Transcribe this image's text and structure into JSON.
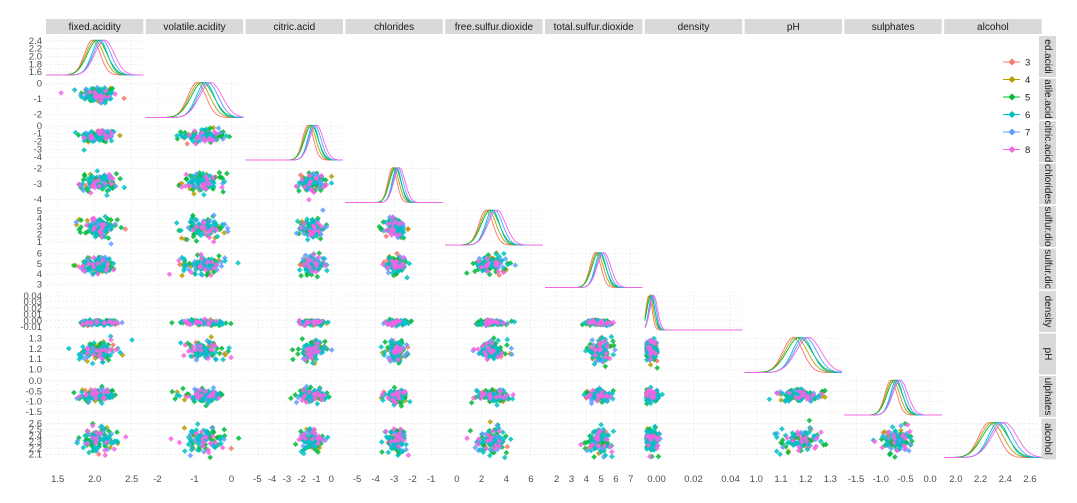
{
  "chart_data": {
    "type": "scatter",
    "layout": "pair-matrix-lower-triangle",
    "diagonal": "density",
    "variables": [
      "fixed.acidity",
      "volatile.acidity",
      "citric.acid",
      "chlorides",
      "free.sulfur.dioxide",
      "total.sulfur.dioxide",
      "density",
      "pH",
      "sulphates",
      "alcohol"
    ],
    "row_strip_labels": [
      "ed.acidi",
      "atile.acid",
      "citric.acid",
      "chlorides",
      "sulfur.dio",
      "sulfur.dic",
      "density",
      "pH",
      "ulphates",
      "alcohol"
    ],
    "column_ticks": [
      [
        "1.5",
        "2.0",
        "2.5"
      ],
      [
        "-2",
        "-1",
        "0"
      ],
      [
        "-5",
        "-4",
        "-3",
        "-2",
        "-1",
        "0"
      ],
      [
        "-5",
        "-4",
        "-3",
        "-2",
        "-1"
      ],
      [
        "0",
        "2",
        "4",
        "6"
      ],
      [
        "2",
        "3",
        "4",
        "5",
        "6",
        "7"
      ],
      [
        "0.00",
        "0.02",
        "0.04"
      ],
      [
        "1.0",
        "1.1",
        "1.2",
        "1.3"
      ],
      [
        "-1.5",
        "-1.0",
        "-0.5",
        "0.0"
      ],
      [
        "2.0",
        "2.2",
        "2.4",
        "2.6"
      ]
    ],
    "row_ticks": [
      [
        "1.6",
        "1.8",
        "2.0",
        "2.2",
        "2.4"
      ],
      [
        "-2",
        "-1",
        "0"
      ],
      [
        "-4",
        "-3",
        "-2",
        "-1",
        "0"
      ],
      [
        "-4",
        "-3",
        "-2"
      ],
      [
        "1",
        "2",
        "3",
        "4",
        "5"
      ],
      [
        "3",
        "4",
        "5",
        "6"
      ],
      [
        "-0.01",
        "0.00",
        "0.01",
        "0.02",
        "0.03",
        "0.04"
      ],
      [
        "1.0",
        "1.1",
        "1.2",
        "1.3"
      ],
      [
        "-1.5",
        "-1.0",
        "-0.5",
        "0.0"
      ],
      [
        "2.1",
        "2.2",
        "2.3",
        "2.4",
        "2.5",
        "2.6"
      ]
    ],
    "variable_stats": [
      {
        "mean": 2.05,
        "sd": 0.13
      },
      {
        "mean": -0.75,
        "sd": 0.3
      },
      {
        "mean": -1.3,
        "sd": 0.45
      },
      {
        "mean": -2.9,
        "sd": 0.3
      },
      {
        "mean": 2.8,
        "sd": 0.7
      },
      {
        "mean": 4.9,
        "sd": 0.45
      },
      {
        "mean": -0.0025,
        "sd": 0.002
      },
      {
        "mean": 1.18,
        "sd": 0.05
      },
      {
        "mean": -0.7,
        "sd": 0.15
      },
      {
        "mean": 2.33,
        "sd": 0.1
      }
    ],
    "legend": {
      "title": "",
      "placement": "top-right",
      "entries": [
        {
          "label": "3",
          "color": "#F8766D"
        },
        {
          "label": "4",
          "color": "#B79F00"
        },
        {
          "label": "5",
          "color": "#00BA38"
        },
        {
          "label": "6",
          "color": "#00BFC4"
        },
        {
          "label": "7",
          "color": "#619CFF"
        },
        {
          "label": "8",
          "color": "#F564E3"
        }
      ]
    },
    "panel_background": "#ffffff",
    "strip_background": "#d9d9d9",
    "grid": true
  }
}
